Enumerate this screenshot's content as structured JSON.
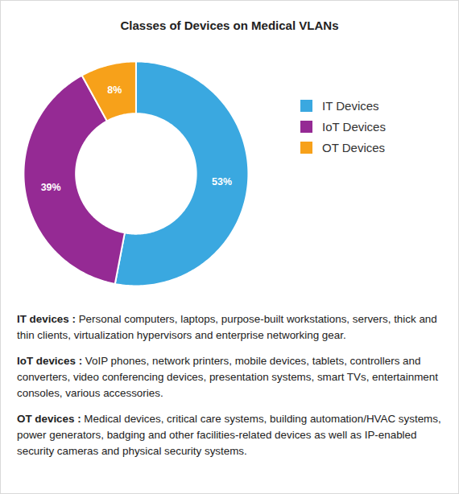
{
  "chart_data": {
    "type": "donut",
    "title": "Classes of Devices on Medical VLANs",
    "categories": [
      "IT Devices",
      "IoT Devices",
      "OT Devices"
    ],
    "values": [
      53,
      39,
      8
    ],
    "value_labels": [
      "53%",
      "39%",
      "8%"
    ],
    "colors": [
      "#3aa8e0",
      "#952a94",
      "#f7a11a"
    ],
    "data_labels": true,
    "legend": "right",
    "annotations": [
      {
        "label": "IT devices :",
        "text": "Personal computers, laptops, purpose-built workstations, servers, thick and thin clients, virtualization hypervisors and enterprise networking gear."
      },
      {
        "label": "IoT devices :",
        "text": "VoIP phones, network printers, mobile devices, tablets, controllers and converters, video conferencing devices, presentation systems, smart TVs, entertainment consoles, various accessories."
      },
      {
        "label": "OT devices :",
        "text": "Medical devices, critical care systems, building automation/HVAC systems, power generators, badging and other facilities-related devices as well as IP-enabled security cameras and physical security systems."
      }
    ]
  }
}
